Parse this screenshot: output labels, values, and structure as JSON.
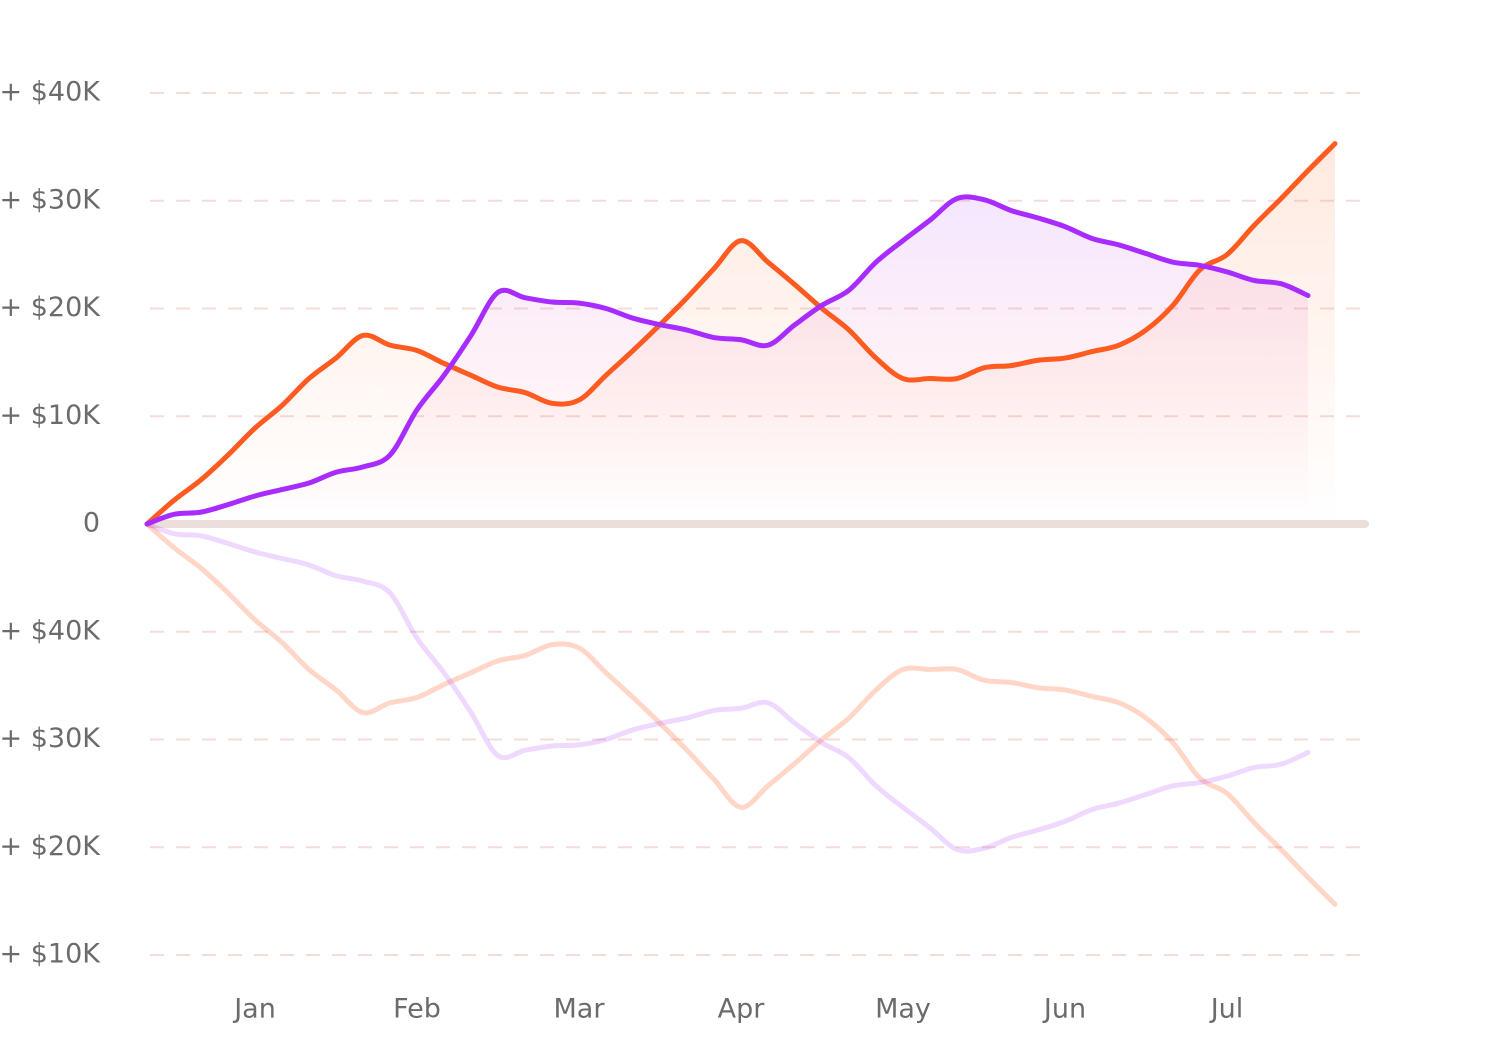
{
  "chart_data": {
    "type": "line",
    "categories": [
      null,
      null,
      null,
      null,
      "Jan",
      null,
      null,
      null,
      null,
      null,
      "Feb",
      null,
      null,
      null,
      null,
      null,
      "Mar",
      null,
      null,
      null,
      null,
      null,
      "Apr",
      null,
      null,
      null,
      null,
      null,
      "May",
      null,
      null,
      null,
      null,
      null,
      "Jun",
      null,
      null,
      null,
      null,
      null,
      "Jul",
      null,
      null,
      null,
      null
    ],
    "series": [
      {
        "color": "#ff5a1f",
        "values": [
          0,
          2200,
          4100,
          6400,
          8900,
          11000,
          13500,
          15400,
          17500,
          16600,
          16100,
          14900,
          13800,
          12700,
          12200,
          11200,
          11500,
          13800,
          16100,
          18500,
          21000,
          23700,
          26300,
          24300,
          22200,
          20000,
          18000,
          15400,
          13500,
          13500,
          13500,
          14500,
          14700,
          15200,
          15400,
          16000,
          16600,
          18000,
          20300,
          23600,
          25000,
          27700,
          30200,
          32800,
          35300
        ]
      },
      {
        "color": "#a82bff",
        "values": [
          0,
          900,
          1100,
          1800,
          2600,
          3200,
          3800,
          4800,
          5300,
          6400,
          10600,
          13800,
          17500,
          21500,
          21000,
          20600,
          20500,
          20000,
          19100,
          18500,
          18000,
          17300,
          17100,
          16600,
          18500,
          20300,
          21700,
          24300,
          26300,
          28200,
          30200,
          30100,
          29100,
          28400,
          27600,
          26500,
          25900,
          25100,
          24300,
          24000,
          23400,
          22600,
          22300,
          21200,
          null
        ]
      }
    ],
    "ylim": [
      0,
      40000
    ],
    "yticks": [
      0,
      {
        "value": 10000,
        "label": "+ $10K"
      },
      {
        "value": 20000,
        "label": "+ $20K"
      },
      {
        "value": 30000,
        "label": "+ $30K"
      },
      {
        "value": 40000,
        "label": "+ $40K"
      }
    ],
    "mirror_yticks": [
      {
        "value": 40000,
        "label": "+ $40K"
      },
      {
        "value": 30000,
        "label": "+ $30K"
      },
      {
        "value": 20000,
        "label": "+ $20K"
      },
      {
        "value": 10000,
        "label": "+ $10K"
      }
    ],
    "reflection": true,
    "grid": true
  }
}
